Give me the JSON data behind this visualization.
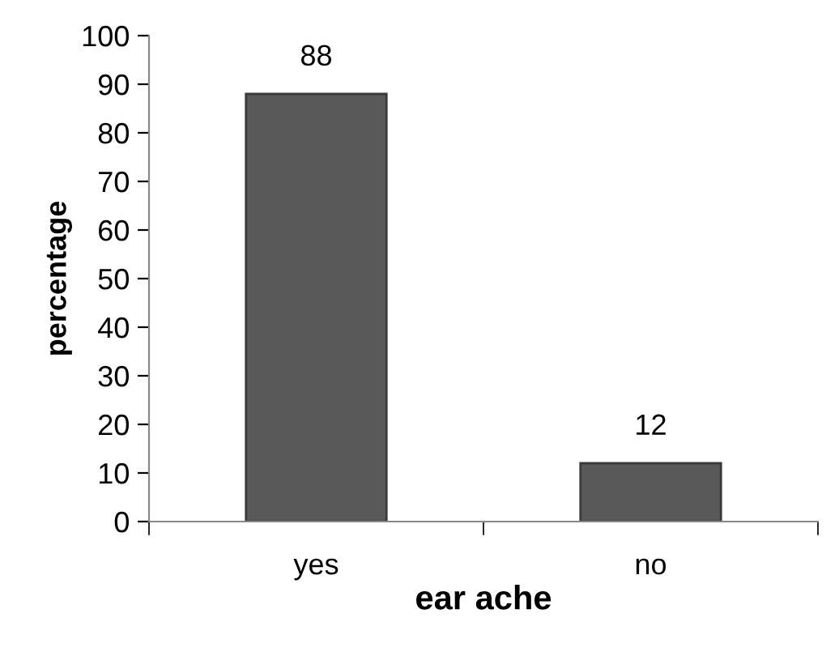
{
  "chart_data": {
    "type": "bar",
    "xlabel": "ear ache",
    "ylabel": "percentage",
    "categories": [
      "yes",
      "no"
    ],
    "values": [
      88,
      12
    ],
    "color": "#595959",
    "ylim": [
      0,
      100
    ],
    "yticks": [
      0,
      10,
      20,
      30,
      40,
      50,
      60,
      70,
      80,
      90,
      100
    ],
    "grid": false,
    "data_labels": true
  }
}
